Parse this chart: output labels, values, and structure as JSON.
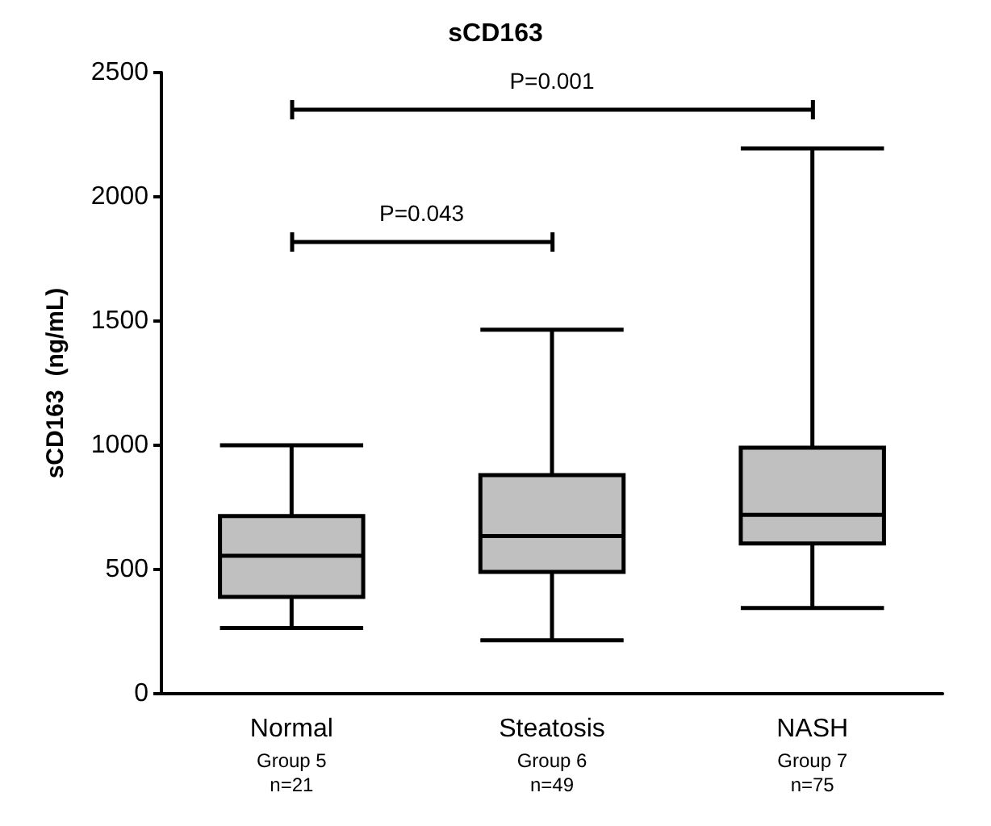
{
  "chart_data": {
    "type": "box",
    "title": "sCD163",
    "ylabel": "sCD163  (ng/mL)",
    "categories": [
      "Normal\nGroup 5\nn=21",
      "Steatosis\nGroup 6\nn=49",
      "NASH\nGroup 7\nn=75"
    ],
    "boxes": [
      {
        "low": 265,
        "q1": 390,
        "median": 555,
        "q3": 715,
        "high": 1000
      },
      {
        "low": 215,
        "q1": 490,
        "median": 635,
        "q3": 880,
        "high": 1465
      },
      {
        "low": 345,
        "q1": 605,
        "median": 720,
        "q3": 990,
        "high": 2195
      }
    ],
    "color": "#c0c0c0",
    "ylim": [
      0,
      2500
    ],
    "yticks": [
      0,
      500,
      1000,
      1500,
      2000,
      2500
    ],
    "grid": false,
    "annotations": [
      "P=0.001",
      "P=0.043"
    ]
  }
}
